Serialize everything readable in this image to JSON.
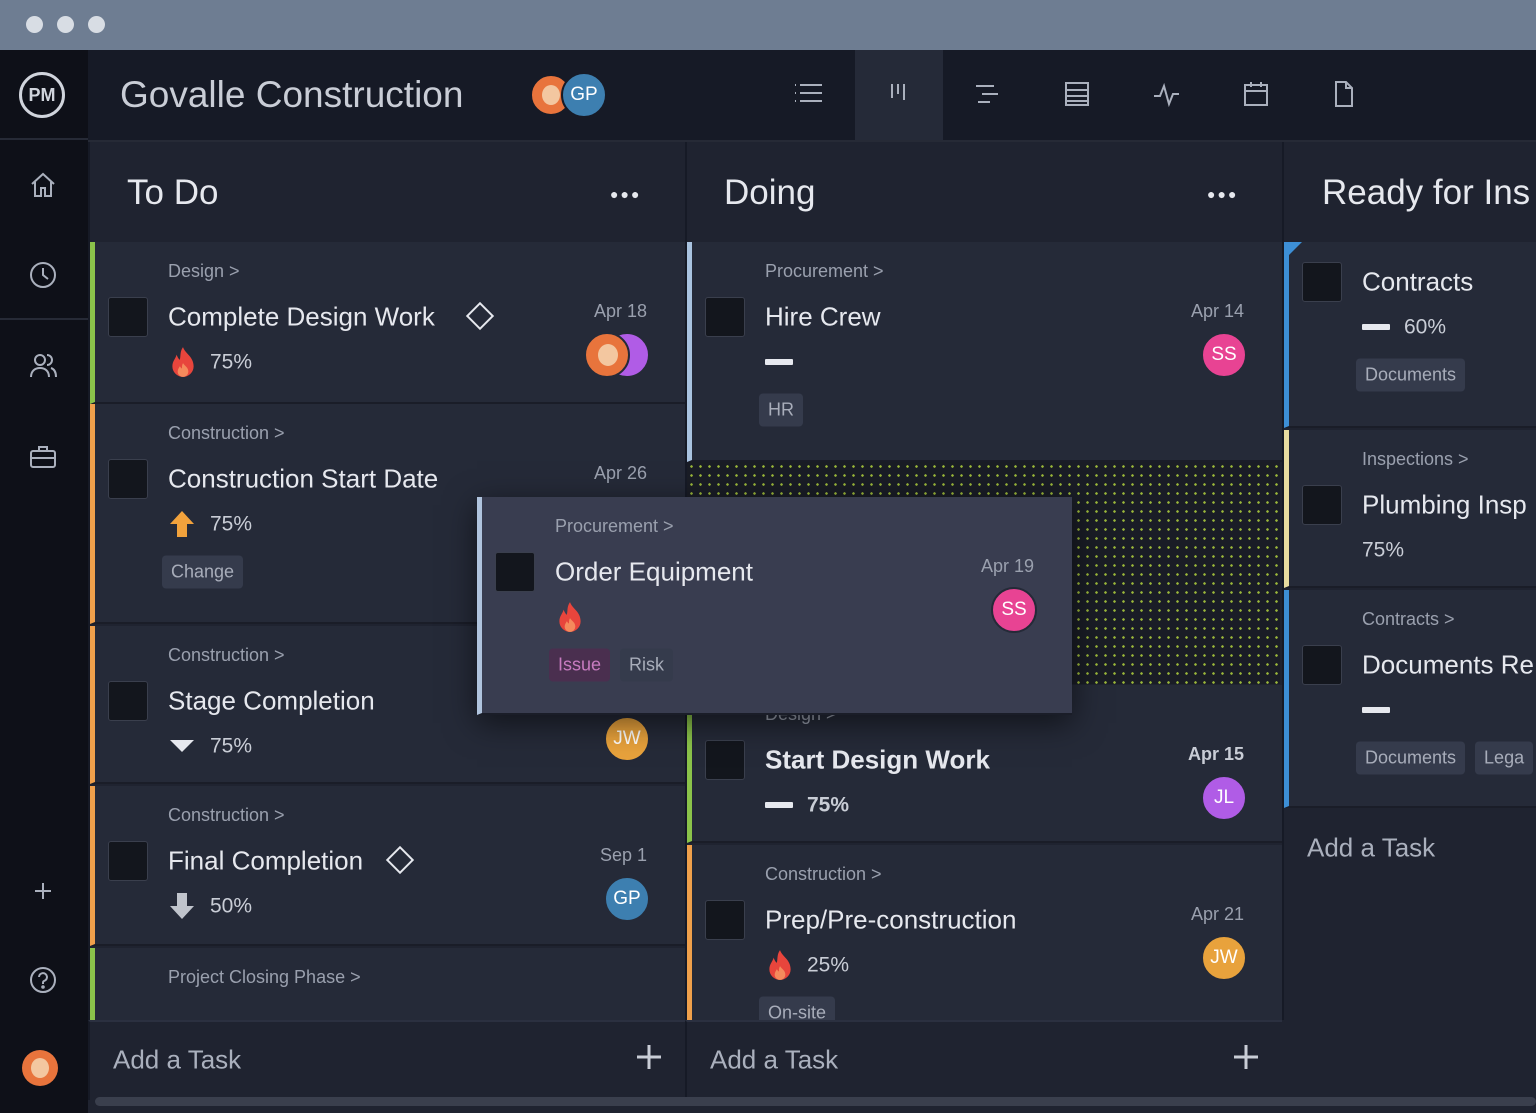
{
  "app": {
    "logo": "PM",
    "project_title": "Govalle Construction",
    "header_avatar": "GP"
  },
  "columns": [
    {
      "title": "To Do",
      "cards": [
        {
          "category": "Design >",
          "title": "Complete Design Work",
          "date": "Apr 18",
          "percent": "75%"
        },
        {
          "category": "Construction >",
          "title": "Construction Start Date",
          "date": "Apr 26",
          "percent": "75%",
          "tags": [
            "Change"
          ]
        },
        {
          "category": "Construction >",
          "title": "Stage Completion",
          "percent": "75%",
          "avatars": [
            "JW"
          ]
        },
        {
          "category": "Construction >",
          "title": "Final Completion",
          "date": "Sep 1",
          "percent": "50%",
          "avatars": [
            "GP"
          ]
        },
        {
          "category": "Project Closing Phase >"
        }
      ],
      "add_task": "Add a Task"
    },
    {
      "title": "Doing",
      "cards": [
        {
          "category": "Procurement >",
          "title": "Hire Crew",
          "date": "Apr 14",
          "avatars": [
            "SS"
          ],
          "tags": [
            "HR"
          ]
        },
        {
          "category": "Design >",
          "title": "Start Design Work",
          "date": "Apr 15",
          "percent": "75%",
          "avatars": [
            "JL"
          ]
        },
        {
          "category": "Construction >",
          "title": "Prep/Pre-construction",
          "date": "Apr 21",
          "percent": "25%",
          "avatars": [
            "JW"
          ],
          "tags": [
            "On-site"
          ]
        }
      ],
      "add_task": "Add a Task"
    },
    {
      "title": "Ready for Ins",
      "cards": [
        {
          "title": "Contracts",
          "percent": "60%",
          "tags": [
            "Documents"
          ]
        },
        {
          "category": "Inspections >",
          "title": "Plumbing Insp",
          "percent": "75%"
        },
        {
          "category": "Contracts >",
          "title": "Documents Re",
          "tags": [
            "Documents",
            "Lega"
          ]
        }
      ],
      "add_task": "Add a Task"
    }
  ],
  "dragged_card": {
    "category": "Procurement >",
    "title": "Order Equipment",
    "date": "Apr 19",
    "avatars": [
      "SS"
    ],
    "tags": [
      "Issue",
      "Risk"
    ]
  }
}
